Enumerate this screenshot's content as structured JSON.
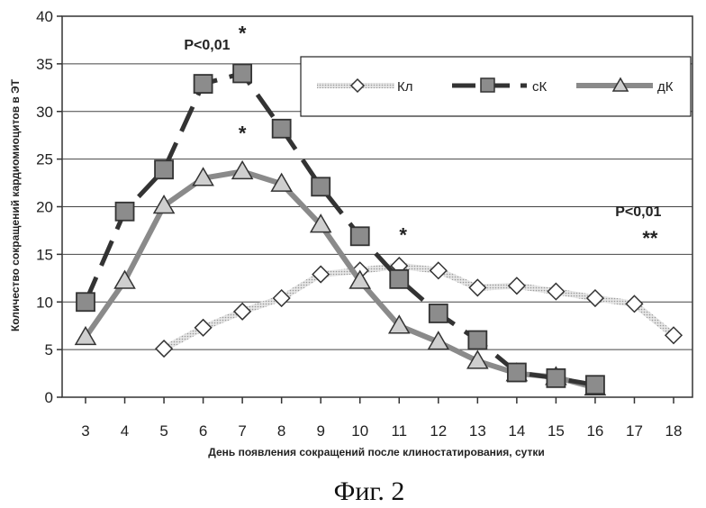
{
  "chart_data": {
    "type": "line",
    "title": "",
    "xlabel": "День появления сокращений после клиностатирования, сутки",
    "ylabel": "Количество сокращений кардиомиоцитов в ЭТ",
    "x_ticks": [
      "3",
      "4",
      "5",
      "6",
      "7",
      "8",
      "9",
      "10",
      "11",
      "12",
      "13",
      "14",
      "15",
      "16",
      "17",
      "18"
    ],
    "y_ticks": [
      "0",
      "5",
      "10",
      "15",
      "20",
      "25",
      "30",
      "35",
      "40"
    ],
    "xlim": [
      3,
      18
    ],
    "ylim": [
      0,
      40
    ],
    "grid": "horizontal",
    "legend_position": "top-right",
    "series": [
      {
        "name": "Кл",
        "marker": "diamond",
        "style": "dotted-gray",
        "x": [
          5,
          6,
          7,
          8,
          9,
          10,
          11,
          12,
          13,
          14,
          15,
          16,
          17,
          18
        ],
        "y": [
          5.1,
          7.3,
          9.0,
          10.4,
          12.9,
          13.3,
          13.8,
          13.3,
          11.5,
          11.7,
          11.1,
          10.4,
          9.8,
          6.5
        ]
      },
      {
        "name": "сК",
        "marker": "square",
        "style": "dashed-dark",
        "x": [
          3,
          4,
          5,
          6,
          7,
          8,
          9,
          10,
          11,
          12,
          13,
          14,
          15,
          16
        ],
        "y": [
          10.0,
          19.5,
          23.9,
          32.9,
          34.0,
          28.2,
          22.1,
          16.9,
          12.4,
          8.8,
          6.0,
          2.6,
          2.0,
          1.3
        ]
      },
      {
        "name": "дК",
        "marker": "triangle",
        "style": "solid-gray",
        "x": [
          3,
          4,
          5,
          6,
          7,
          8,
          9,
          10,
          11,
          12,
          13,
          14,
          15,
          16
        ],
        "y": [
          6.3,
          12.2,
          20.1,
          23.0,
          23.7,
          22.4,
          18.1,
          12.2,
          7.5,
          5.8,
          3.8,
          2.5,
          2.1,
          1.0
        ]
      }
    ],
    "annotations": [
      {
        "text": "P<0,01",
        "x": 6.1,
        "y": 36.5
      },
      {
        "text": "*",
        "x": 7,
        "y": 37.5
      },
      {
        "text": "*",
        "x": 7,
        "y": 27.0
      },
      {
        "text": "*",
        "x": 11.1,
        "y": 16.3
      },
      {
        "text": "P<0,01",
        "x": 17.1,
        "y": 19.0
      },
      {
        "text": "**",
        "x": 17.4,
        "y": 16.0
      }
    ]
  },
  "caption": "Фиг. 2"
}
